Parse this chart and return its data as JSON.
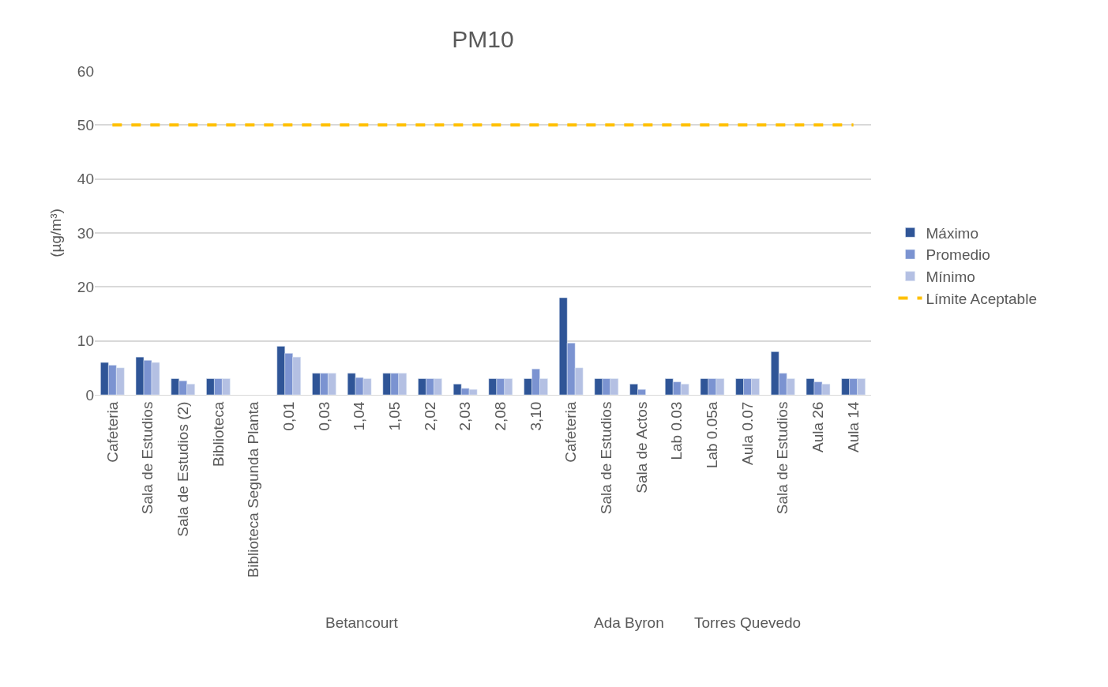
{
  "chart_data": {
    "type": "bar",
    "title": "PM10",
    "ylabel": "(µg/m³)",
    "categories": [
      "Cafeteria",
      "Sala de Estudios",
      "Sala de Estudios (2)",
      "Biblioteca",
      "Biblioteca Segunda Planta",
      "0,01",
      "0,03",
      "1,04",
      "1,05",
      "2,02",
      "2,03",
      "2,08",
      "3,10",
      "Cafeteria",
      "Sala de Estudios",
      "Sala de Actos",
      "Lab 0.03",
      "Lab 0.05a",
      "Aula 0.07",
      "Sala de Estudios",
      "Aula 26",
      "Aula 14"
    ],
    "series": [
      {
        "name": "Máximo",
        "color": "#2f5597",
        "values": [
          6,
          7,
          3,
          3,
          null,
          9,
          4,
          4,
          4,
          3,
          2,
          3,
          3,
          18,
          3,
          2,
          3,
          3,
          3,
          8,
          3,
          3
        ]
      },
      {
        "name": "Promedio",
        "color": "#7b93d1",
        "values": [
          5.5,
          6.4,
          2.6,
          3,
          null,
          7.7,
          4,
          3.2,
          4,
          3,
          1.2,
          3,
          4.8,
          9.6,
          3,
          1,
          2.4,
          3,
          3,
          4,
          2.4,
          3
        ]
      },
      {
        "name": "Mínimo",
        "color": "#b4c0e3",
        "values": [
          5,
          6,
          2,
          3,
          null,
          7,
          4,
          3,
          4,
          3,
          1,
          3,
          3,
          5,
          3,
          null,
          2,
          3,
          3,
          3,
          2,
          3
        ]
      }
    ],
    "ref_lines": [
      {
        "axis": "y",
        "value": 50,
        "label": "Límite Aceptable",
        "color": "#ffc000",
        "line_style": "dashed"
      }
    ],
    "annotations": [
      "Betancourt",
      "Ada Byron",
      "Torres Quevedo"
    ],
    "ylim": [
      0,
      60
    ],
    "yticks": [
      0,
      10,
      20,
      30,
      40,
      50,
      60
    ],
    "grid": "y",
    "legend": "right"
  }
}
